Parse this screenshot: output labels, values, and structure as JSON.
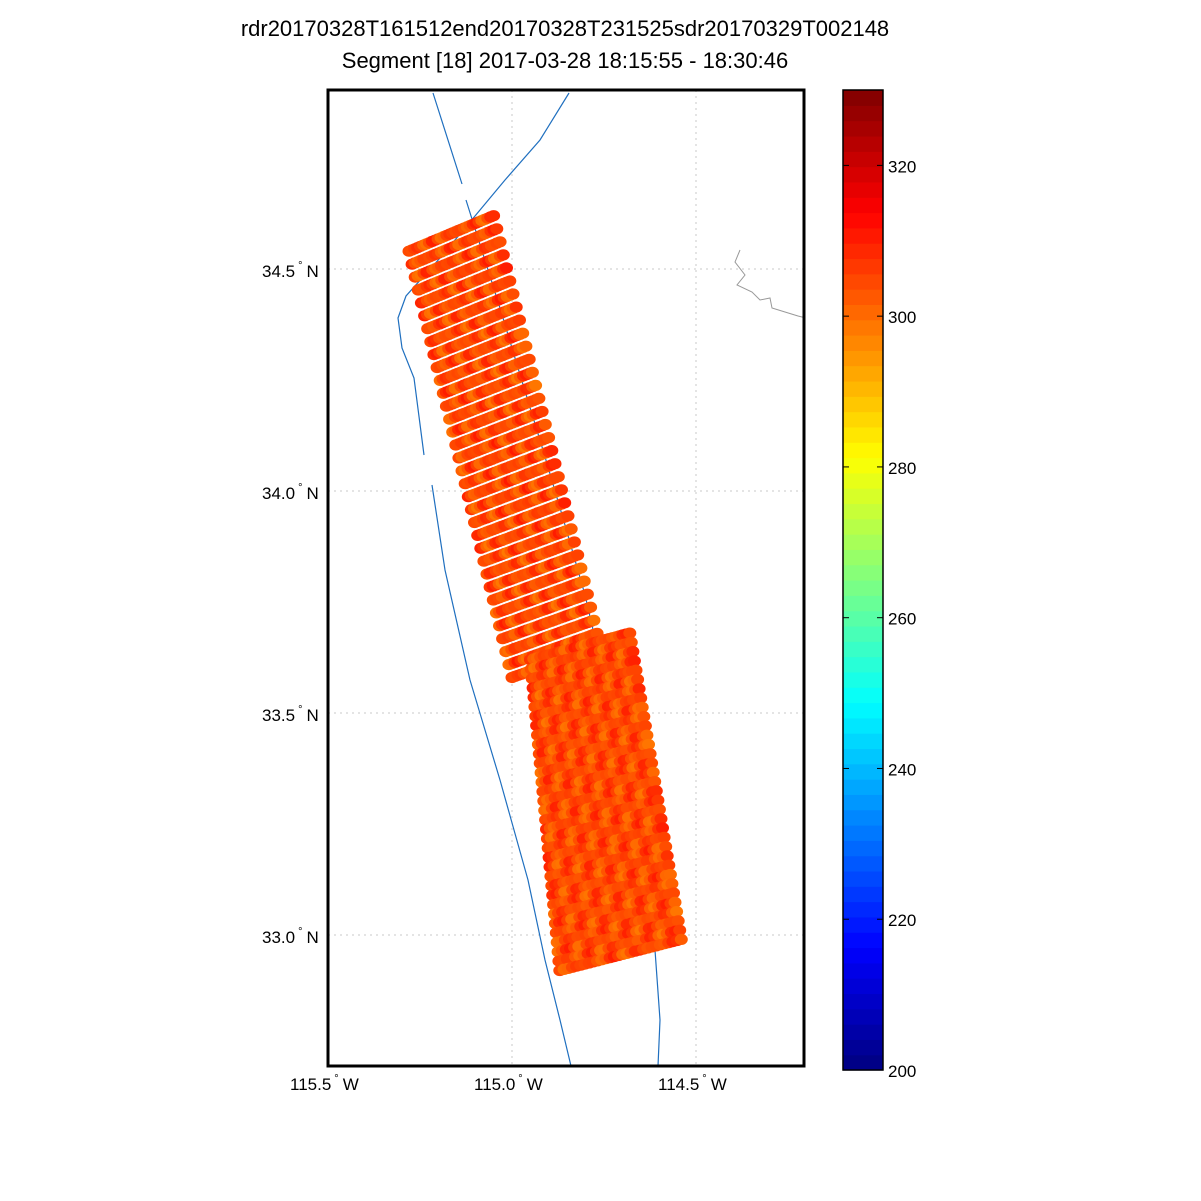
{
  "title": "rdr20170328T161512end20170328T231525sdr20170329T002148",
  "subtitle": "Segment [18] 2017-03-28 18:15:55 - 18:30:46",
  "map": {
    "lon_range": [
      -115.5,
      -114.2
    ],
    "lat_range": [
      32.7,
      34.9
    ],
    "lat_ticks": [
      {
        "value": 34.5,
        "label": "34.5",
        "suffix": "N"
      },
      {
        "value": 34.0,
        "label": "34.0",
        "suffix": "N"
      },
      {
        "value": 33.5,
        "label": "33.5",
        "suffix": "N"
      },
      {
        "value": 33.0,
        "label": "33.0",
        "suffix": "N"
      }
    ],
    "lon_ticks": [
      {
        "value": -115.5,
        "label": "115.5",
        "suffix": "W"
      },
      {
        "value": -115.0,
        "label": "115.0",
        "suffix": "W"
      },
      {
        "value": -114.5,
        "label": "114.5",
        "suffix": "W"
      }
    ],
    "grid": true,
    "border_color": "#1f6fbf",
    "coast_color": "#999999"
  },
  "colorbar": {
    "colormap": "jet",
    "range": [
      200,
      330
    ],
    "ticks": [
      {
        "value": 320,
        "label": "320"
      },
      {
        "value": 300,
        "label": "300"
      },
      {
        "value": 280,
        "label": "280"
      },
      {
        "value": 260,
        "label": "260"
      },
      {
        "value": 240,
        "label": "240"
      },
      {
        "value": 220,
        "label": "220"
      },
      {
        "value": 200,
        "label": "200"
      }
    ]
  },
  "chart_data": {
    "type": "scatter",
    "value_range_observed": [
      292,
      312
    ],
    "swath": {
      "scan_lines": 34,
      "footprints_per_line": 30,
      "segments": [
        {
          "near_start": [
            -115.28,
            34.54
          ],
          "far_start": [
            -115.05,
            34.62
          ],
          "near_end": [
            -115.0,
            33.58
          ],
          "far_end": [
            -114.76,
            33.65
          ]
        },
        {
          "near_start": [
            -114.95,
            33.62
          ],
          "far_start": [
            -114.68,
            33.68
          ],
          "near_end": [
            -114.87,
            32.92
          ],
          "far_end": [
            -114.54,
            32.99
          ]
        }
      ]
    }
  }
}
